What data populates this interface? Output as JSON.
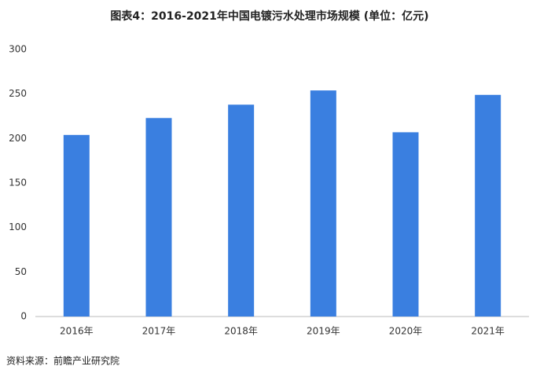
{
  "chart_data": {
    "type": "bar",
    "title": "图表4：2016-2021年中国电镀污水处理市场规模 (单位：亿元)",
    "source": "资料来源：前瞻产业研究院",
    "categories": [
      "2016年",
      "2017年",
      "2018年",
      "2019年",
      "2020年",
      "2021年"
    ],
    "values": [
      204,
      223,
      238,
      254,
      207,
      249
    ],
    "color": "#3a7fe0",
    "ylim": [
      0,
      300
    ],
    "yticks": [
      0,
      50,
      100,
      150,
      200,
      250,
      300
    ],
    "grid": false
  }
}
